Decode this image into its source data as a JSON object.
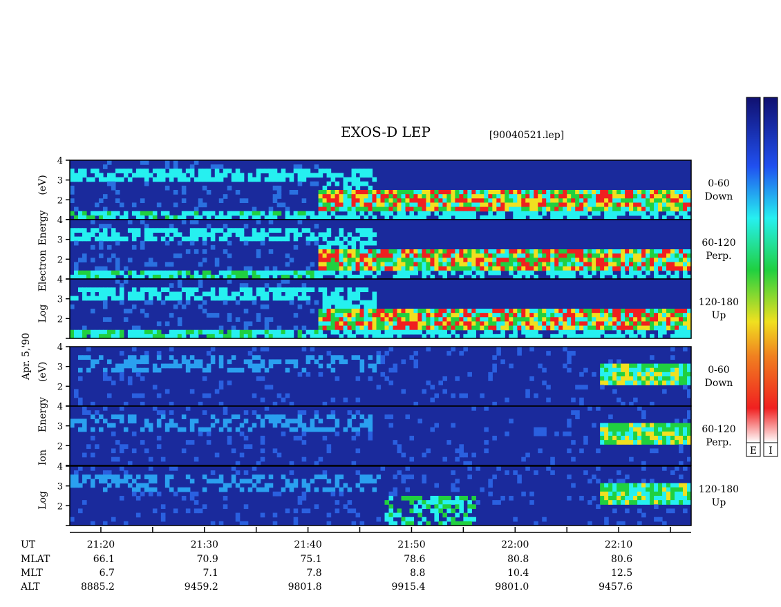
{
  "header": {
    "title": "EXOS-D LEP",
    "file_label": "[90040521.lep]"
  },
  "chart_data": {
    "type": "heatmap",
    "title": "EXOS-D LEP",
    "subtitle": "[90040521.lep]",
    "date_label": "Apr. 5,'90",
    "x_axis": {
      "label": "UT",
      "tick_labels": [
        "21:20",
        "21:30",
        "21:40",
        "21:50",
        "22:00",
        "22:10"
      ],
      "range": [
        "21:17",
        "22:17"
      ]
    },
    "groups": [
      {
        "name": "electron",
        "ylabel": [
          "Log",
          "Electron",
          "Energy",
          "(eV)"
        ],
        "panels": [
          {
            "angle": "0-60",
            "direction": "Down",
            "ylim": [
              1,
              4
            ],
            "yticks": [
              "4",
              "3",
              "2"
            ]
          },
          {
            "angle": "60-120",
            "direction": "Perp.",
            "ylim": [
              1,
              4
            ],
            "yticks": [
              "4",
              "3",
              "2"
            ]
          },
          {
            "angle": "120-180",
            "direction": "Up",
            "ylim": [
              1,
              4
            ],
            "yticks": [
              "4",
              "3",
              "2"
            ]
          }
        ]
      },
      {
        "name": "ion",
        "ylabel": [
          "Log",
          "Ion",
          "Energy",
          "(eV)"
        ],
        "panels": [
          {
            "angle": "0-60",
            "direction": "Down",
            "ylim": [
              1,
              4
            ],
            "yticks": [
              "4",
              "3",
              "2"
            ]
          },
          {
            "angle": "60-120",
            "direction": "Perp.",
            "ylim": [
              1,
              4
            ],
            "yticks": [
              "4",
              "3",
              "2"
            ]
          },
          {
            "angle": "120-180",
            "direction": "Up",
            "ylim": [
              1,
              4
            ],
            "yticks": [
              "4",
              "3",
              "2"
            ]
          }
        ]
      }
    ],
    "ephemeris": {
      "rows": [
        {
          "label": "MLAT",
          "values": [
            "66.1",
            "70.9",
            "75.1",
            "78.6",
            "80.8",
            "80.6"
          ]
        },
        {
          "label": "MLT",
          "values": [
            "6.7",
            "7.1",
            "7.8",
            "8.8",
            "10.4",
            "12.5"
          ]
        },
        {
          "label": "ALT",
          "values": [
            "8885.2",
            "9459.2",
            "9801.8",
            "9915.4",
            "9801.0",
            "9457.6"
          ]
        }
      ]
    },
    "colorbars": [
      {
        "label": "E"
      },
      {
        "label": "I"
      }
    ],
    "colors": {
      "low": "#1a2a9c",
      "mid": "#26f0f0",
      "green": "#20d040",
      "yellow": "#f0e020",
      "red": "#f02020",
      "high": "#ffffff"
    }
  }
}
